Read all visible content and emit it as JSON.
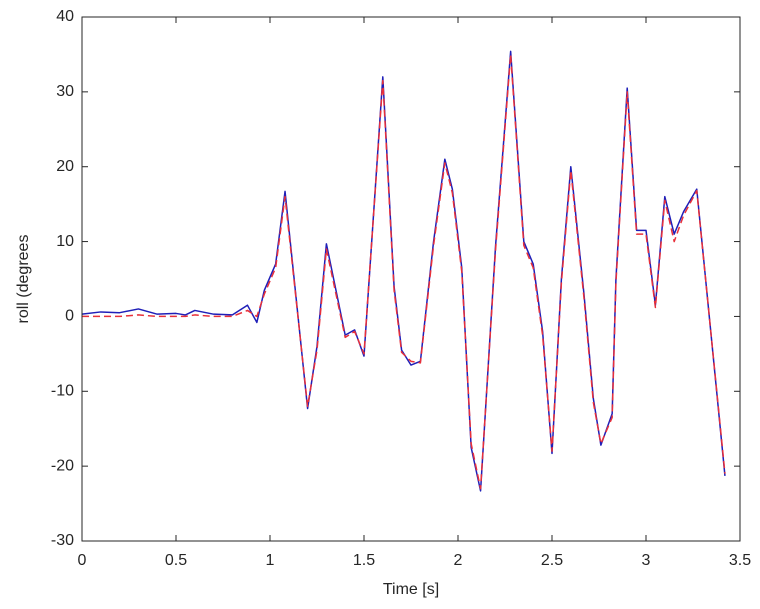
{
  "chart_data": {
    "type": "line",
    "x_label": "Time [s]",
    "y_label": "roll (degrees",
    "x": [
      0,
      0.1,
      0.2,
      0.3,
      0.4,
      0.5,
      0.55,
      0.6,
      0.7,
      0.8,
      0.88,
      0.93,
      0.97,
      1.03,
      1.08,
      1.2,
      1.25,
      1.3,
      1.4,
      1.45,
      1.5,
      1.6,
      1.66,
      1.7,
      1.75,
      1.8,
      1.87,
      1.93,
      1.97,
      2.02,
      2.07,
      2.12,
      2.2,
      2.28,
      2.35,
      2.4,
      2.45,
      2.5,
      2.55,
      2.6,
      2.67,
      2.72,
      2.76,
      2.82,
      2.84,
      2.9,
      2.95,
      3.0,
      3.05,
      3.1,
      3.15,
      3.2,
      3.27,
      3.42
    ],
    "series": [
      {
        "color": "#1f1fb8",
        "style": "solid",
        "values": [
          0.3,
          0.6,
          0.5,
          1.0,
          0.3,
          0.4,
          0.2,
          0.8,
          0.3,
          0.2,
          1.5,
          -0.8,
          3.5,
          7,
          16.7,
          -12.3,
          -4,
          9.7,
          -2.5,
          -1.8,
          -5.3,
          32,
          4,
          -4.5,
          -6.5,
          -6,
          10,
          21,
          17,
          6.5,
          -17.5,
          -23.3,
          9.5,
          35.4,
          10,
          7,
          -2,
          -18.3,
          5,
          20,
          3,
          -11,
          -17.2,
          -13,
          5,
          30.5,
          11.5,
          11.5,
          1.5,
          16,
          11,
          14,
          17,
          -21.3
        ]
      },
      {
        "color": "#e8303a",
        "style": "dashed",
        "values": [
          0,
          0,
          0,
          0.2,
          0,
          0,
          0,
          0.2,
          0,
          0,
          0.8,
          0,
          3,
          6.5,
          16,
          -12,
          -4.5,
          9,
          -2.8,
          -2,
          -5,
          31.5,
          3.5,
          -4.8,
          -6,
          -6.2,
          9.5,
          20.5,
          16.5,
          6,
          -17,
          -23,
          9,
          35,
          9.5,
          6.5,
          -2.5,
          -18,
          4.5,
          19.5,
          2.5,
          -11.5,
          -17,
          -13.5,
          4.5,
          30,
          11,
          11,
          1.2,
          15.5,
          10,
          13.5,
          16.8,
          -21
        ]
      }
    ],
    "xlim": [
      0,
      3.5
    ],
    "xticks": [
      0,
      0.5,
      1,
      1.5,
      2,
      2.5,
      3,
      3.5
    ],
    "ylim": [
      -30,
      40
    ],
    "yticks": [
      -30,
      -20,
      -10,
      0,
      10,
      20,
      30,
      40
    ],
    "grid": false
  }
}
